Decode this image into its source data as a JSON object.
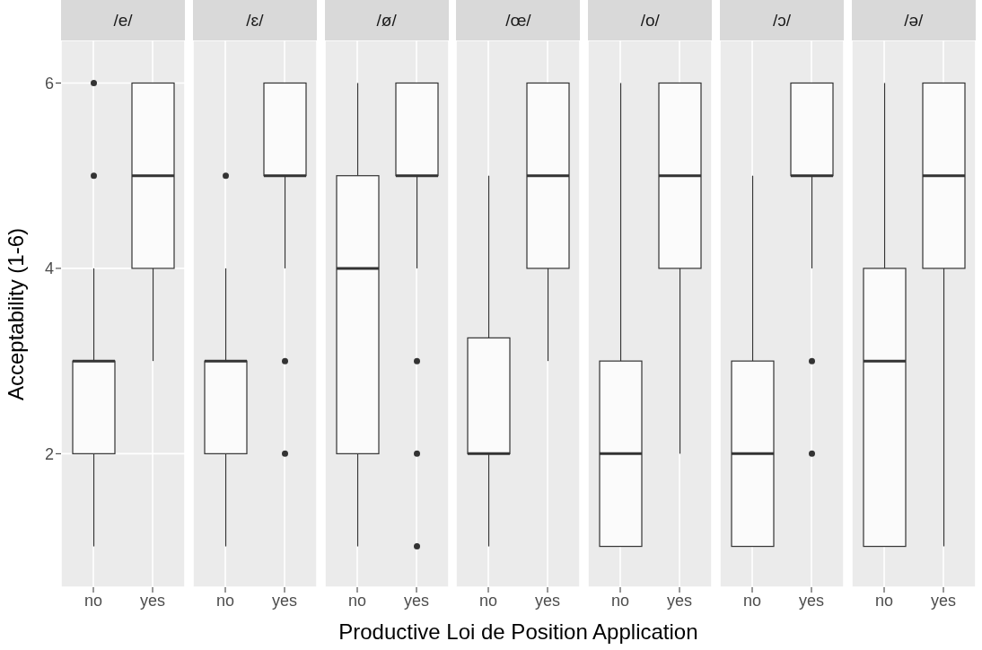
{
  "chart_data": [
    {
      "type": "box",
      "title": "/e/",
      "ylabel": "Acceptability (1-6)",
      "categories": [
        "no",
        "yes"
      ],
      "boxes": [
        {
          "low": 1,
          "q1": 2,
          "median": 3,
          "q3": 3,
          "high": 4,
          "outliers": [
            5,
            6
          ]
        },
        {
          "low": 3,
          "q1": 4,
          "median": 5,
          "q3": 6,
          "high": 6
        }
      ],
      "ylim": [
        0.56,
        6.46
      ],
      "yticks": [
        2,
        4,
        6
      ],
      "grid": true
    },
    {
      "type": "box",
      "title": "/ɛ/",
      "categories": [
        "no",
        "yes"
      ],
      "boxes": [
        {
          "low": 1,
          "q1": 2,
          "median": 3,
          "q3": 3,
          "high": 4,
          "outliers": [
            5
          ]
        },
        {
          "low": 4,
          "q1": 5,
          "median": 5,
          "q3": 6,
          "high": 6,
          "outliers": [
            3,
            2
          ]
        }
      ],
      "ylim": [
        0.56,
        6.46
      ],
      "yticks": [
        2,
        4,
        6
      ],
      "grid": true,
      "tick_labels": "x"
    },
    {
      "type": "box",
      "title": "/ø/",
      "categories": [
        "no",
        "yes"
      ],
      "boxes": [
        {
          "low": 1,
          "q1": 2,
          "median": 4,
          "q3": 5,
          "high": 6
        },
        {
          "low": 4,
          "q1": 5,
          "median": 5,
          "q3": 6,
          "high": 6,
          "outliers": [
            3,
            2,
            1
          ]
        }
      ],
      "ylim": [
        0.56,
        6.46
      ],
      "yticks": [
        2,
        4,
        6
      ],
      "grid": true,
      "tick_labels": "x"
    },
    {
      "type": "box",
      "title": "/œ/",
      "xlabel": "Productive Loi de Position Application",
      "categories": [
        "no",
        "yes"
      ],
      "boxes": [
        {
          "low": 1,
          "q1": 2,
          "median": 2,
          "q3": 3.25,
          "high": 5
        },
        {
          "low": 3,
          "q1": 4,
          "median": 5,
          "q3": 6,
          "high": 6
        }
      ],
      "ylim": [
        0.56,
        6.46
      ],
      "yticks": [
        2,
        4,
        6
      ],
      "grid": true,
      "tick_labels": "x"
    },
    {
      "type": "box",
      "title": "/o/",
      "categories": [
        "no",
        "yes"
      ],
      "boxes": [
        {
          "low": 1,
          "q1": 1,
          "median": 2,
          "q3": 3,
          "high": 6
        },
        {
          "low": 2,
          "q1": 4,
          "median": 5,
          "q3": 6,
          "high": 6
        }
      ],
      "ylim": [
        0.56,
        6.46
      ],
      "yticks": [
        2,
        4,
        6
      ],
      "grid": true,
      "tick_labels": "x"
    },
    {
      "type": "box",
      "title": "/ɔ/",
      "categories": [
        "no",
        "yes"
      ],
      "boxes": [
        {
          "low": 1,
          "q1": 1,
          "median": 2,
          "q3": 3,
          "high": 5
        },
        {
          "low": 4,
          "q1": 5,
          "median": 5,
          "q3": 6,
          "high": 6,
          "outliers": [
            3,
            2
          ]
        }
      ],
      "ylim": [
        0.56,
        6.46
      ],
      "yticks": [
        2,
        4,
        6
      ],
      "grid": true,
      "tick_labels": "x"
    },
    {
      "type": "box",
      "title": "/ə/",
      "categories": [
        "no",
        "yes"
      ],
      "boxes": [
        {
          "low": 1,
          "q1": 1,
          "median": 3,
          "q3": 4,
          "high": 6
        },
        {
          "low": 1,
          "q1": 4,
          "median": 5,
          "q3": 6,
          "high": 6
        }
      ],
      "ylim": [
        0.56,
        6.46
      ],
      "yticks": [
        2,
        4,
        6
      ],
      "grid": true,
      "tick_labels": "x"
    }
  ]
}
